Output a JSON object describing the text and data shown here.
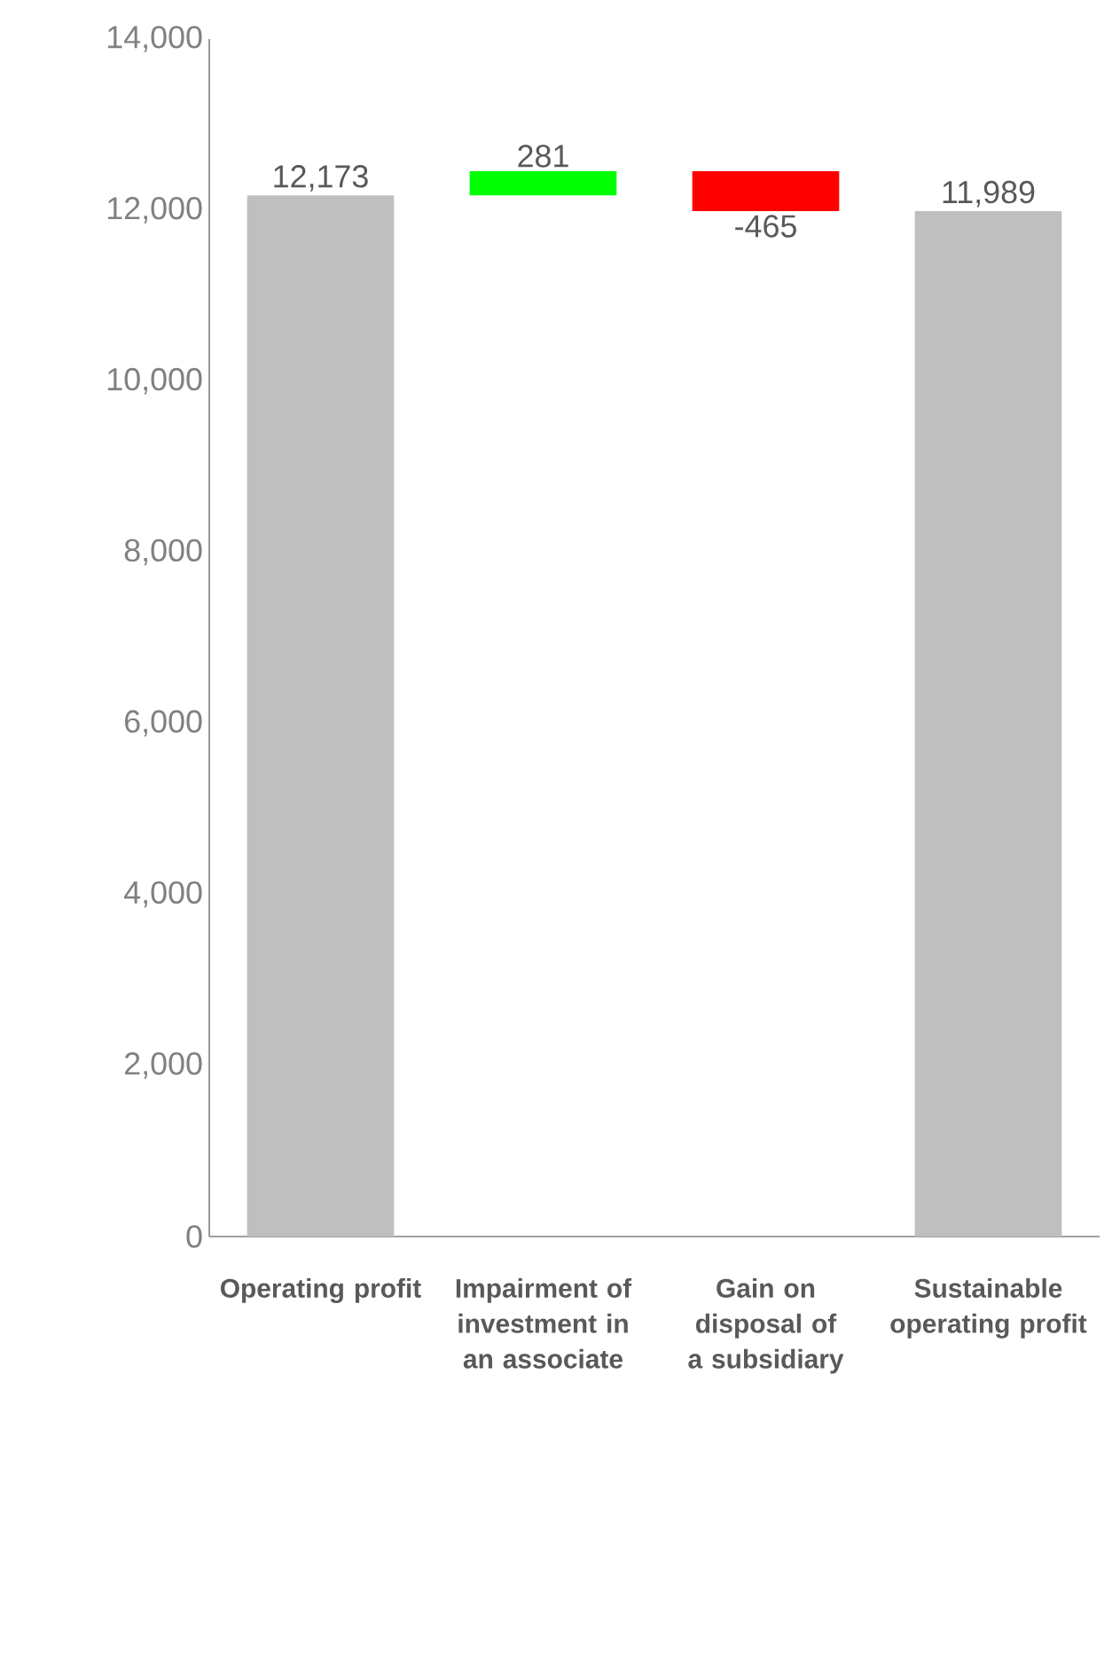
{
  "chart_data": {
    "type": "bar",
    "categories": [
      "Operating profit",
      "Impairment of investment in an associate",
      "Gain on disposal of a subsidiary",
      "Sustainable operating profit"
    ],
    "values": [
      12173,
      281,
      -465,
      11989
    ],
    "base": [
      0,
      12173,
      12454,
      0
    ],
    "colors": [
      "#bfbfbf",
      "#00ff00",
      "#ff0000",
      "#bfbfbf"
    ],
    "value_labels": [
      "12,173",
      "281",
      "-465",
      "11,989"
    ],
    "ylim": [
      0,
      14000
    ],
    "yticks": [
      {
        "value": 0,
        "label": "0"
      },
      {
        "value": 2000,
        "label": "2,000"
      },
      {
        "value": 4000,
        "label": "4,000"
      },
      {
        "value": 6000,
        "label": "6,000"
      },
      {
        "value": 8000,
        "label": "8,000"
      },
      {
        "value": 10000,
        "label": "10,000"
      },
      {
        "value": 12000,
        "label": "12,000"
      },
      {
        "value": 14000,
        "label": "14,000"
      }
    ]
  }
}
